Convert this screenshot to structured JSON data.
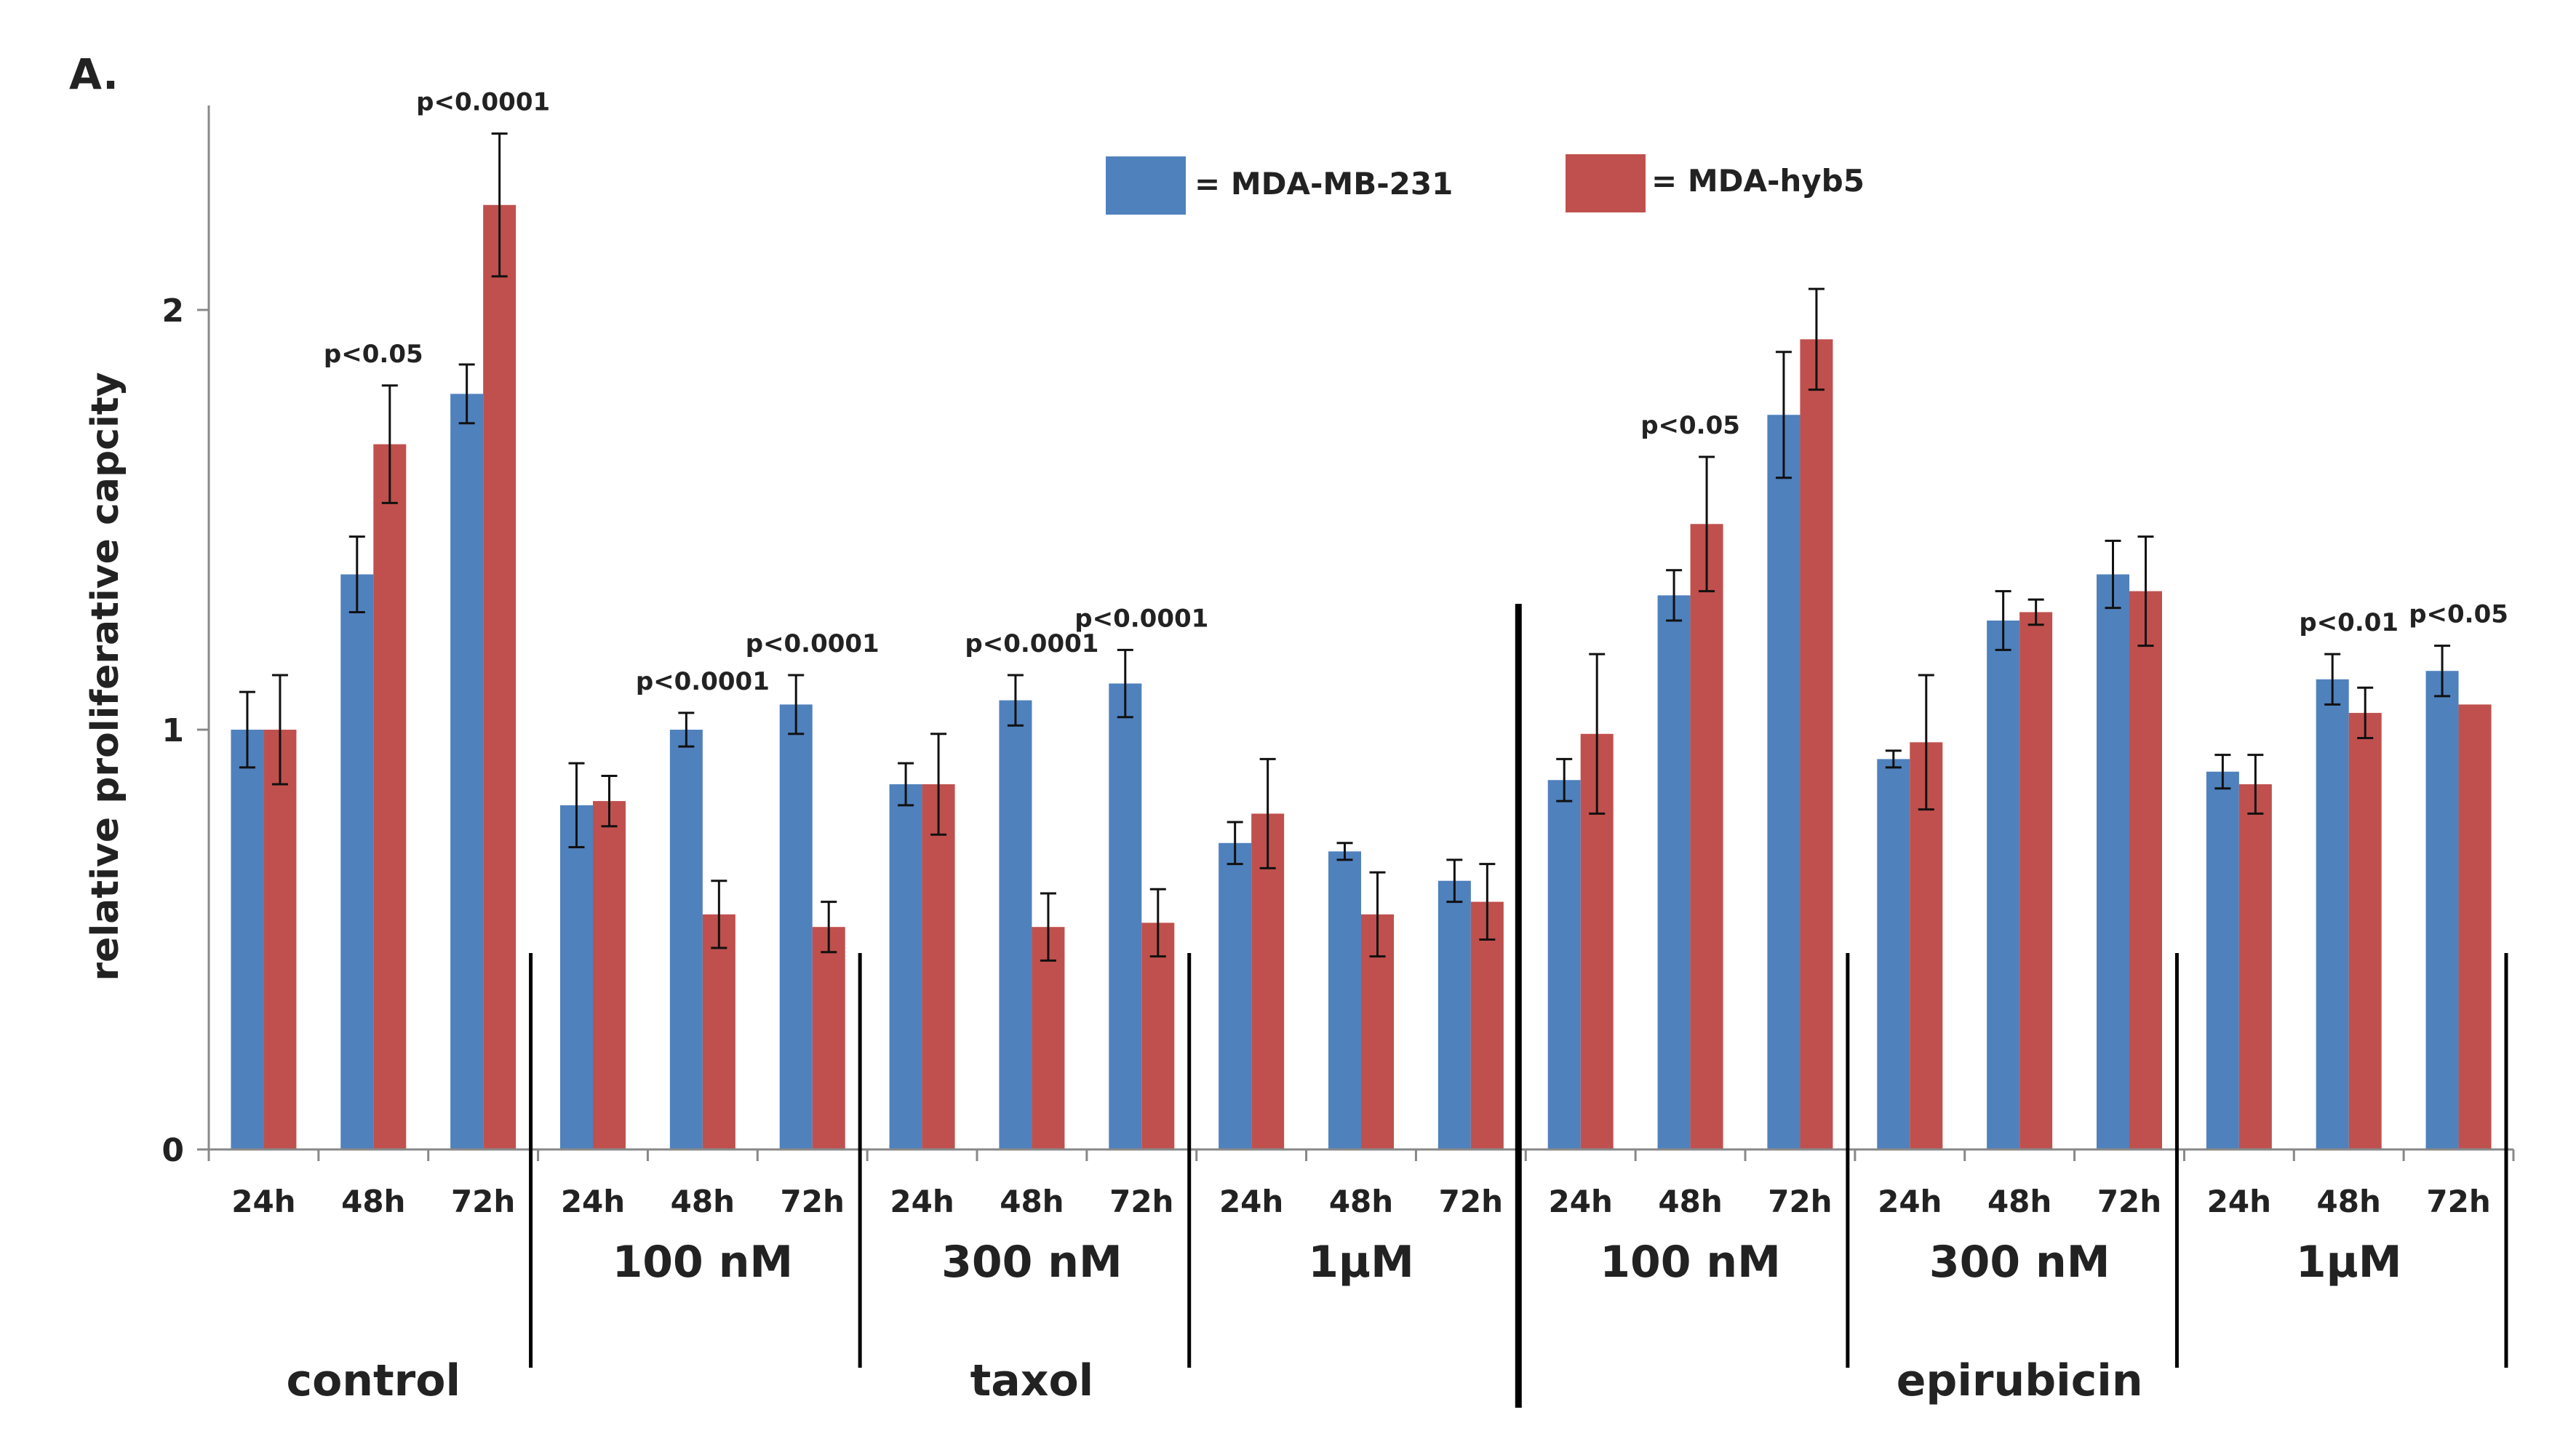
{
  "chart_data": {
    "type": "bar",
    "panel_label": "A.",
    "ylabel": "relative proliferative capcity",
    "ylim": [
      0,
      2.5
    ],
    "yticks": [
      "0",
      "1",
      "2"
    ],
    "series": [
      {
        "name": "= MDA-MB-231",
        "color": "#4F81BD",
        "values": [
          1.0,
          1.37,
          1.8,
          0.82,
          1.0,
          1.06,
          0.87,
          1.07,
          1.11,
          0.73,
          0.71,
          0.64,
          0.88,
          1.32,
          1.75,
          0.93,
          1.26,
          1.37,
          0.9,
          1.12,
          1.14
        ],
        "errors": [
          0.09,
          0.09,
          0.07,
          0.1,
          0.04,
          0.07,
          0.05,
          0.06,
          0.08,
          0.05,
          0.02,
          0.05,
          0.05,
          0.06,
          0.15,
          0.02,
          0.07,
          0.08,
          0.04,
          0.06,
          0.06
        ]
      },
      {
        "name": "= MDA-hyb5",
        "color": "#C0504D",
        "values": [
          1.0,
          1.68,
          2.25,
          0.83,
          0.56,
          0.53,
          0.87,
          0.53,
          0.54,
          0.8,
          0.56,
          0.59,
          0.99,
          1.49,
          1.93,
          0.97,
          1.28,
          1.33,
          0.87,
          1.04,
          1.06
        ],
        "errors": [
          0.13,
          0.14,
          0.17,
          0.06,
          0.08,
          0.06,
          0.12,
          0.08,
          0.08,
          0.13,
          0.1,
          0.09,
          0.19,
          0.16,
          0.12,
          0.16,
          0.03,
          0.13,
          0.07,
          0.06,
          0.0
        ]
      }
    ],
    "categories": [
      "24h",
      "48h",
      "72h",
      "24h",
      "48h",
      "72h",
      "24h",
      "48h",
      "72h",
      "24h",
      "48h",
      "72h",
      "24h",
      "48h",
      "72h",
      "24h",
      "48h",
      "72h",
      "24h",
      "48h",
      "72h"
    ],
    "annotations": [
      {
        "text": "p<0.05",
        "category": 1
      },
      {
        "text": "p<0.0001",
        "category": 2
      },
      {
        "text": "p<0.0001",
        "category": 4
      },
      {
        "text": "p<0.0001",
        "category": 5
      },
      {
        "text": "p<0.0001",
        "category": 7
      },
      {
        "text": "p<0.0001",
        "category": 8
      },
      {
        "text": "p<0.05",
        "category": 13
      },
      {
        "text": "p<0.01",
        "category": 19
      },
      {
        "text": "p<0.05",
        "category": 20
      }
    ],
    "dose_groups": [
      {
        "label": "100 nM",
        "start": 3,
        "end": 5
      },
      {
        "label": "300 nM",
        "start": 6,
        "end": 8
      },
      {
        "label": "1µM",
        "start": 9,
        "end": 11
      },
      {
        "label": "100 nM",
        "start": 12,
        "end": 14
      },
      {
        "label": "300 nM",
        "start": 15,
        "end": 17
      },
      {
        "label": "1µM",
        "start": 18,
        "end": 20
      }
    ],
    "treatment_groups": [
      {
        "label": "control",
        "start": 0,
        "end": 2
      },
      {
        "label": "taxol",
        "start": 3,
        "end": 11
      },
      {
        "label": "epirubicin",
        "start": 12,
        "end": 20
      }
    ],
    "legend_position": "top-center"
  }
}
